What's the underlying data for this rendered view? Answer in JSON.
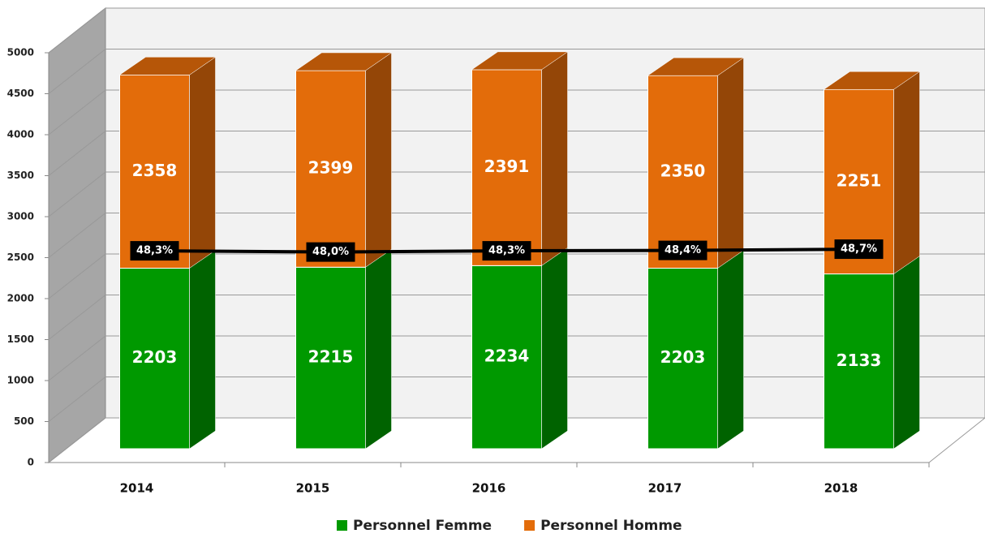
{
  "chart_data": {
    "type": "bar",
    "stacked": true,
    "categories": [
      "2014",
      "2015",
      "2016",
      "2017",
      "2018"
    ],
    "series": [
      {
        "name": "Personnel Femme",
        "color": "#009900",
        "values": [
          2203,
          2215,
          2234,
          2203,
          2133
        ]
      },
      {
        "name": "Personnel Homme",
        "color": "#e36c0a",
        "values": [
          2358,
          2399,
          2391,
          2350,
          2251
        ]
      },
      {
        "type": "line",
        "axis": "y2",
        "color": "#000000",
        "values": [
          48.3,
          48.0,
          48.3,
          48.4,
          48.7
        ],
        "value_labels": [
          "48,3%",
          "48,0%",
          "48,3%",
          "48,4%",
          "48,7%"
        ]
      }
    ],
    "ylim": [
      0,
      5000
    ],
    "yticks": [
      0,
      500,
      1000,
      1500,
      2000,
      2500,
      3000,
      3500,
      4000,
      4500,
      5000
    ],
    "y2lim": [
      0,
      100
    ],
    "grid": true,
    "legend": "bottom"
  }
}
